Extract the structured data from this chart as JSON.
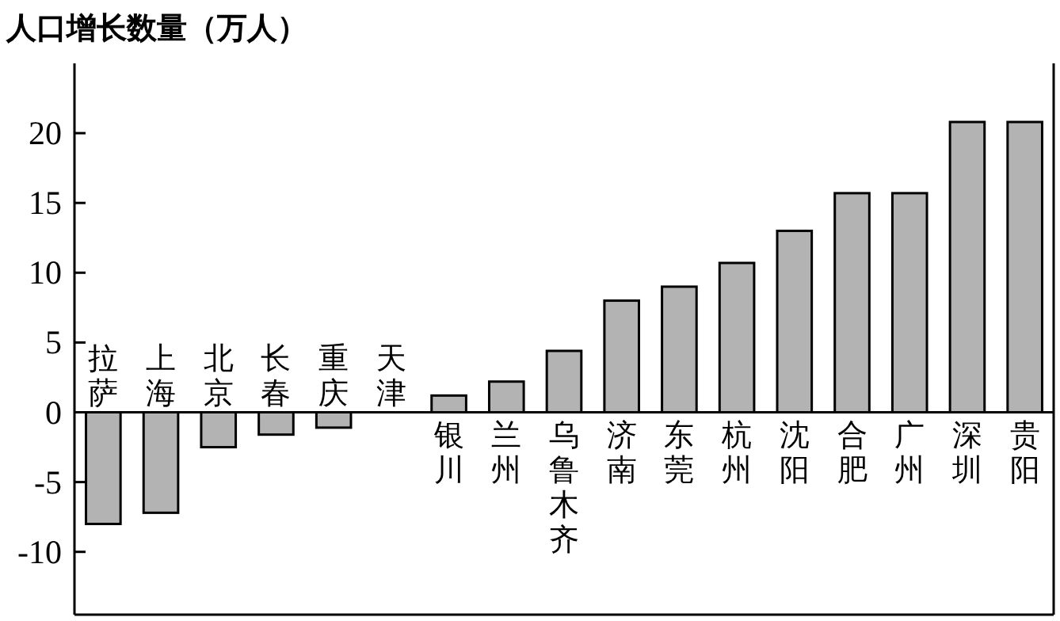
{
  "chart_data": {
    "type": "bar",
    "ylabel": "人口增长数量（万人）",
    "categories": [
      "拉萨",
      "上海",
      "北京",
      "长春",
      "重庆",
      "天津",
      "银川",
      "兰州",
      "乌鲁木齐",
      "济南",
      "东莞",
      "杭州",
      "沈阳",
      "合肥",
      "广州",
      "深圳",
      "贵阳"
    ],
    "values": [
      -8,
      -7.2,
      -2.5,
      -1.6,
      -1.1,
      0,
      1.2,
      2.2,
      4.4,
      8,
      9,
      10.7,
      13,
      15.7,
      15.7,
      20.8,
      20.8
    ],
    "color": "#b3b3b3",
    "ylim": [
      -14.5,
      25
    ],
    "yticks": [
      -10,
      -5,
      0,
      5,
      10,
      15,
      20
    ]
  }
}
